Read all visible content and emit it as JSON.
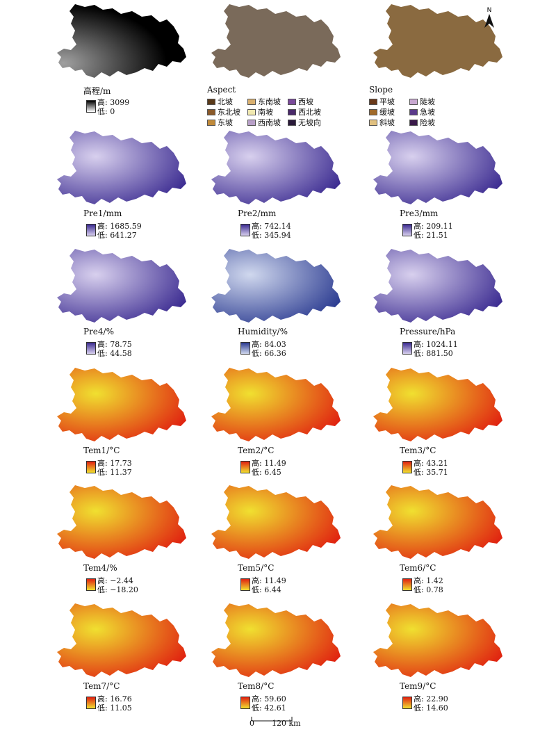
{
  "north_label": "N",
  "scale": {
    "zero": "0",
    "dist": "120 km"
  },
  "panels": [
    {
      "id": "elev",
      "title": "高程/m",
      "ramp": [
        "#ffffff",
        "#000000"
      ],
      "fill": "#1a1a1a",
      "high": "高: 3099",
      "low": "低: 0"
    },
    {
      "id": "aspect",
      "title": "Aspect",
      "fill": "#7a6a5a",
      "legend": [
        "北坡",
        "东北坡",
        "东坡",
        "东南坡",
        "南坡",
        "西南坡",
        "西坡",
        "西北坡",
        "无坡向"
      ],
      "legend_colors": [
        "#5a3a1a",
        "#8a5a2a",
        "#c08a3a",
        "#d9b070",
        "#f0e8b0",
        "#b8a0c8",
        "#7a4a9a",
        "#4a2a6a",
        "#2a1a3a"
      ]
    },
    {
      "id": "slope",
      "title": "Slope",
      "fill": "#8a6a40",
      "legend": [
        "平坡",
        "缓坡",
        "斜坡",
        "陡坡",
        "急坡",
        "险坡"
      ],
      "legend_colors": [
        "#6a3a1a",
        "#a06a2a",
        "#e0c080",
        "#c8a8d0",
        "#5a3a8a",
        "#3a1a4a"
      ]
    },
    {
      "id": "pre1",
      "title": "Pre1/mm",
      "ramp": [
        "#d8d0ee",
        "#3a2a90"
      ],
      "fill": "#7a6ac0",
      "high": "高: 1685.59",
      "low": "低: 641.27"
    },
    {
      "id": "pre2",
      "title": "Pre2/mm",
      "ramp": [
        "#d8d0ee",
        "#3a2a90"
      ],
      "fill": "#7a6ac0",
      "high": "高: 742.14",
      "low": "低: 345.94"
    },
    {
      "id": "pre3",
      "title": "Pre3/mm",
      "ramp": [
        "#d8d0ee",
        "#3a2a90"
      ],
      "fill": "#8a7ac8",
      "high": "高: 209.11",
      "low": "低: 21.51"
    },
    {
      "id": "pre4",
      "title": "Pre4/%",
      "ramp": [
        "#d8d0ee",
        "#3a2a90"
      ],
      "fill": "#6a5ab8",
      "high": "高: 78.75",
      "low": "低: 44.58"
    },
    {
      "id": "hum",
      "title": "Humidity/%",
      "ramp": [
        "#d0d8ee",
        "#2a3a90"
      ],
      "fill": "#5a6ac0",
      "high": "高: 84.03",
      "low": "低: 66.36"
    },
    {
      "id": "press",
      "title": "Pressure/hPa",
      "ramp": [
        "#d8d0ee",
        "#3a2a90"
      ],
      "fill": "#4a3aa8",
      "high": "高: 1024.11",
      "low": "低: 881.50"
    },
    {
      "id": "tem1",
      "title": "Tem1/°C",
      "ramp": [
        "#f0e030",
        "#e02010"
      ],
      "fill": "#e8501a",
      "high": "高: 17.73",
      "low": "低: 11.37"
    },
    {
      "id": "tem2",
      "title": "Tem2/°C",
      "ramp": [
        "#f0e030",
        "#e02010"
      ],
      "fill": "#e8601a",
      "high": "高: 11.49",
      "low": "低: 6.45"
    },
    {
      "id": "tem3",
      "title": "Tem3/°C",
      "ramp": [
        "#f0e030",
        "#e02010"
      ],
      "fill": "#e8581a",
      "high": "高: 43.21",
      "low": "低: 35.71"
    },
    {
      "id": "tem4",
      "title": "Tem4/%",
      "ramp": [
        "#f0e030",
        "#e02010"
      ],
      "fill": "#ec701a",
      "high": "高: −2.44",
      "low": "低: −18.20"
    },
    {
      "id": "tem5",
      "title": "Tem5/°C",
      "ramp": [
        "#f0e030",
        "#e02010"
      ],
      "fill": "#e8601a",
      "high": "高: 11.49",
      "low": "低: 6.44"
    },
    {
      "id": "tem6",
      "title": "Tem6/°C",
      "ramp": [
        "#f0e030",
        "#e02010"
      ],
      "fill": "#e8581a",
      "high": "高: 1.42",
      "low": "低: 0.78"
    },
    {
      "id": "tem7",
      "title": "Tem7/°C",
      "ramp": [
        "#f0e030",
        "#e02010"
      ],
      "fill": "#ec6a1a",
      "high": "高: 16.76",
      "low": "低: 11.05"
    },
    {
      "id": "tem8",
      "title": "Tem8/°C",
      "ramp": [
        "#f0e030",
        "#e02010"
      ],
      "fill": "#ec6a1a",
      "high": "高: 59.60",
      "low": "低: 42.61"
    },
    {
      "id": "tem9",
      "title": "Tem9/°C",
      "ramp": [
        "#f0e030",
        "#e02010"
      ],
      "fill": "#e8581a",
      "high": "高: 22.90",
      "low": "低: 14.60"
    }
  ]
}
